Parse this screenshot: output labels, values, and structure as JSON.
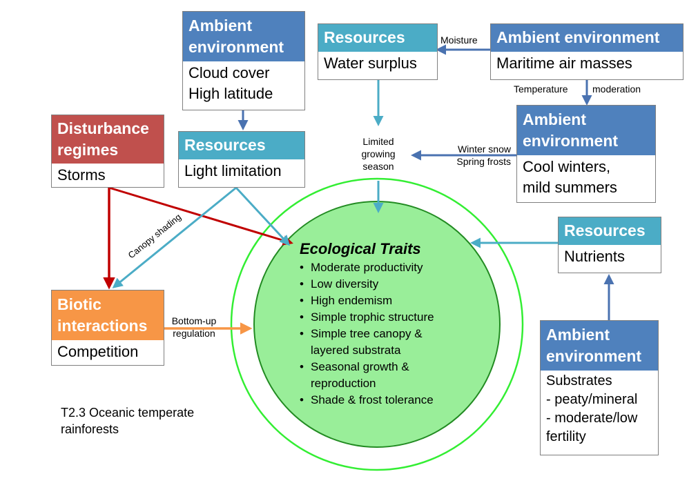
{
  "colors": {
    "ambient_header": "#4f81bd",
    "resources_header": "#4bacc6",
    "disturbance_header": "#c0504d",
    "biotic_header": "#f79646",
    "traits_fill": "#99ee99",
    "traits_ring": "#33ee33",
    "arrow_blue": "#4bacc6",
    "arrow_darkblue": "#4a72b0",
    "arrow_red": "#c00000",
    "arrow_orange": "#f79646"
  },
  "boxes": {
    "ambient_cloud": {
      "header": [
        "Ambient",
        "environment"
      ],
      "body": [
        "Cloud cover",
        "High latitude"
      ]
    },
    "resources_water": {
      "header": [
        "Resources"
      ],
      "body": [
        "Water surplus"
      ]
    },
    "ambient_maritime": {
      "header": [
        "Ambient environment"
      ],
      "body": [
        "Maritime air masses"
      ]
    },
    "ambient_cool": {
      "header": [
        "Ambient",
        "environment"
      ],
      "body": [
        "Cool winters,",
        "mild summers"
      ]
    },
    "disturbance": {
      "header": [
        "Disturbance",
        "regimes"
      ],
      "body": [
        "Storms"
      ]
    },
    "resources_light": {
      "header": [
        "Resources"
      ],
      "body": [
        "Light limitation"
      ]
    },
    "resources_nutrients": {
      "header": [
        "Resources"
      ],
      "body": [
        "Nutrients"
      ]
    },
    "biotic": {
      "header": [
        "Biotic",
        "interactions"
      ],
      "body": [
        "Competition"
      ]
    },
    "ambient_substrates": {
      "header": [
        "Ambient",
        "environment"
      ],
      "body": [
        "Substrates",
        "- peaty/mineral",
        "- moderate/low",
        "fertility"
      ]
    }
  },
  "labels": {
    "moisture": "Moisture",
    "temperature": "Temperature",
    "moderation": "moderation",
    "limited_growing": [
      "Limited",
      "growing",
      "season"
    ],
    "winter_snow": [
      "Winter snow",
      "Spring frosts"
    ],
    "canopy_shading": "Canopy shading",
    "bottom_up": [
      "Bottom-up",
      "regulation"
    ]
  },
  "traits": {
    "title": "Ecological Traits",
    "items": [
      [
        "Moderate productivity"
      ],
      [
        "Low diversity"
      ],
      [
        "High endemism"
      ],
      [
        "Simple trophic structure"
      ],
      [
        "Simple tree canopy &",
        "layered substrata"
      ],
      [
        "Seasonal growth &",
        "reproduction"
      ],
      [
        "Shade & frost tolerance"
      ]
    ]
  },
  "caption": [
    "T2.3 Oceanic temperate",
    "rainforests"
  ]
}
